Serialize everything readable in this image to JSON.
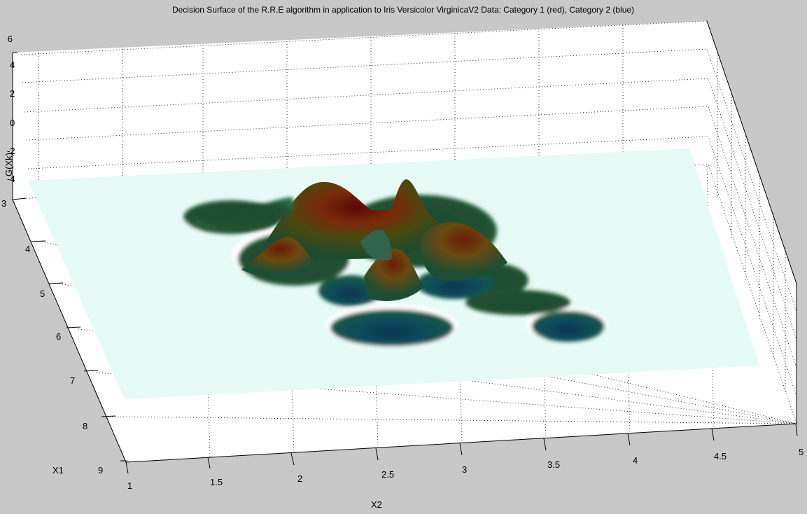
{
  "chart_data": {
    "type": "surface",
    "title": "Decision Surface of the  R.R.E algorithm in application to Iris Versicolor VirginicaV2 Data: Category 1 (red), Category 2 (blue)",
    "xlabel": "X2",
    "ylabel": "X1",
    "zlabel": "G(Xk)",
    "xlim": [
      1,
      5
    ],
    "ylim": [
      3,
      9
    ],
    "zlim": [
      -4,
      6
    ],
    "x_ticks": [
      "1",
      "1.5",
      "2",
      "2.5",
      "3",
      "3.5",
      "4",
      "4.5",
      "5"
    ],
    "y_ticks": [
      "3",
      "4",
      "5",
      "6",
      "7",
      "8",
      "9"
    ],
    "z_ticks": [
      "6",
      "4",
      "2",
      "0",
      "-2",
      "-4"
    ],
    "grid": true,
    "colormap": "jet",
    "colors": {
      "background": "#c8c8c8",
      "plane": "#e6fbf6",
      "peak": "#6b0f05",
      "trough": "#06334f"
    },
    "peaks": [
      {
        "x2": 2.38,
        "x1": 4.0,
        "height": 5.2
      },
      {
        "x2": 2.72,
        "x1": 3.95,
        "height": 5.0
      },
      {
        "x2": 2.85,
        "x1": 4.55,
        "height": 3.5
      },
      {
        "x2": 2.05,
        "x1": 4.75,
        "height": 3.2
      },
      {
        "x2": 2.62,
        "x1": 4.95,
        "height": 3.0
      },
      {
        "x2": 1.98,
        "x1": 3.9,
        "height": 1.8
      }
    ],
    "troughs": [
      {
        "x2": 2.55,
        "x1": 5.9,
        "height": -3.0
      },
      {
        "x2": 3.6,
        "x1": 5.8,
        "height": -3.2
      },
      {
        "x2": 2.75,
        "x1": 5.2,
        "height": -2.0
      },
      {
        "x2": 1.75,
        "x1": 4.0,
        "height": -1.0
      },
      {
        "x2": 3.1,
        "x1": 5.4,
        "height": -1.5
      }
    ]
  }
}
